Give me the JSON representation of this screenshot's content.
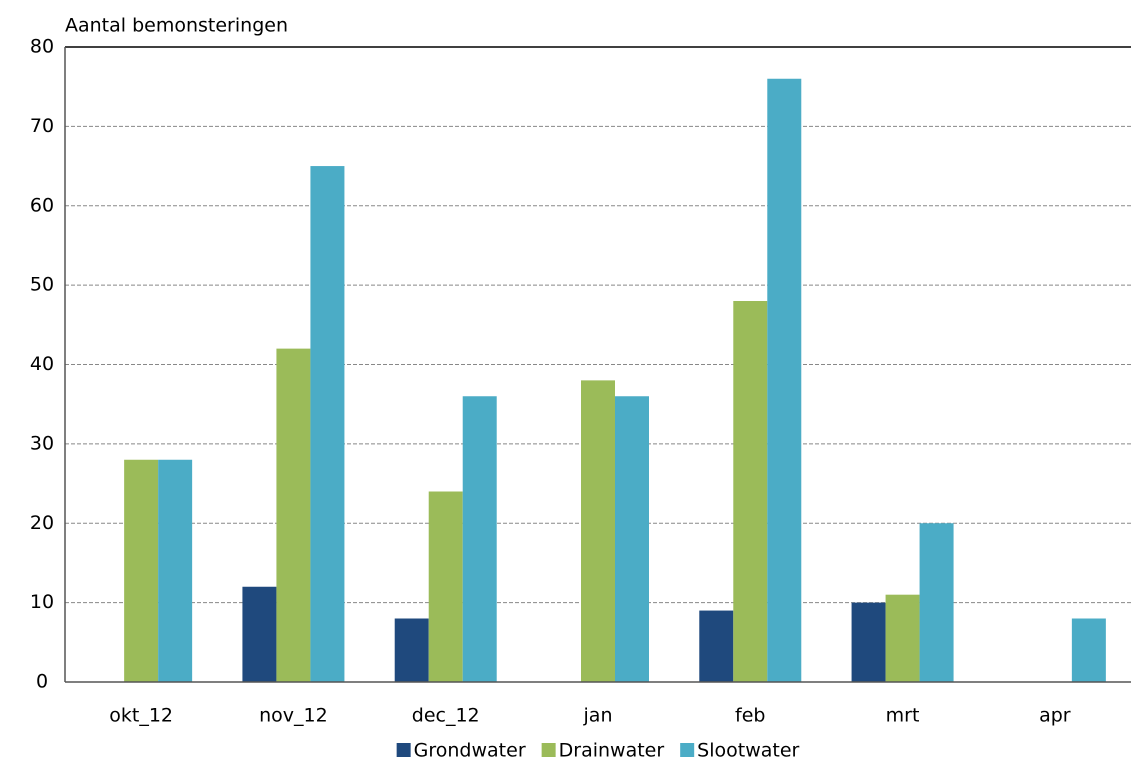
{
  "chart_data": {
    "type": "bar",
    "title": "Aantal bemonsteringen",
    "categories": [
      "okt_12",
      "nov_12",
      "dec_12",
      "jan",
      "feb",
      "mrt",
      "apr"
    ],
    "series": [
      {
        "name": "Grondwater",
        "color": "#1f497d",
        "values": [
          null,
          12,
          8,
          null,
          9,
          10,
          null
        ]
      },
      {
        "name": "Drainwater",
        "color": "#9bbb59",
        "values": [
          28,
          42,
          24,
          38,
          48,
          11,
          null
        ]
      },
      {
        "name": "Slootwater",
        "color": "#4bacc6",
        "values": [
          28,
          65,
          36,
          36,
          76,
          20,
          8
        ]
      }
    ],
    "ylim": [
      0,
      80
    ],
    "yticks": [
      0,
      10,
      20,
      30,
      40,
      50,
      60,
      70,
      80
    ],
    "grid": true,
    "legend": "bottom"
  }
}
